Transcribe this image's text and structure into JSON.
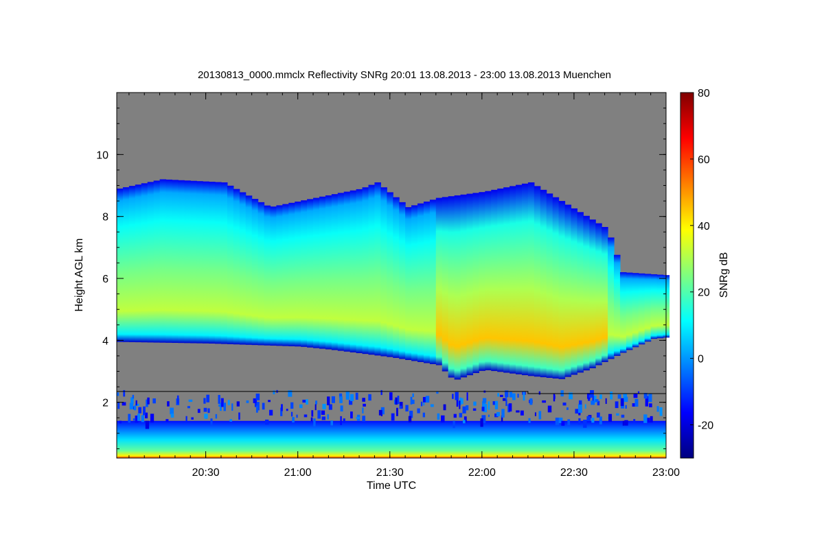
{
  "chart_data": {
    "type": "heatmap",
    "title": "20130813_0000.mmclx Reflectivity SNRg   20:01 13.08.2013 - 23:00 13.08.2013 Muenchen",
    "xlabel": "Time UTC",
    "ylabel": "Height AGL km",
    "colorbar_label": "SNRg dB",
    "xlim": [
      "20:01",
      "23:00"
    ],
    "ylim": [
      0.2,
      12.0
    ],
    "x_ticks": [
      "20:30",
      "21:00",
      "21:30",
      "22:00",
      "22:30",
      "23:00"
    ],
    "y_ticks": [
      "2",
      "4",
      "6",
      "8",
      "10"
    ],
    "colorbar_range": [
      -30,
      80
    ],
    "colorbar_ticks": [
      "-20",
      "0",
      "20",
      "40",
      "60",
      "80"
    ],
    "background_color": "#808080",
    "colormap": [
      "#00007f",
      "#0000ff",
      "#007fff",
      "#00ffff",
      "#7fff7f",
      "#ffff00",
      "#ff7f00",
      "#ff0000",
      "#7f0000"
    ],
    "cloud": {
      "base_km": [
        [
          "20:01",
          3.95
        ],
        [
          "20:30",
          3.9
        ],
        [
          "20:45",
          3.85
        ],
        [
          "21:00",
          3.8
        ],
        [
          "21:10",
          3.7
        ],
        [
          "21:30",
          3.45
        ],
        [
          "21:45",
          3.2
        ],
        [
          "21:50",
          2.7
        ],
        [
          "22:00",
          3.05
        ],
        [
          "22:15",
          2.85
        ],
        [
          "22:25",
          2.75
        ],
        [
          "22:35",
          3.1
        ],
        [
          "22:45",
          3.6
        ],
        [
          "22:55",
          4.05
        ],
        [
          "23:00",
          4.1
        ]
      ],
      "top_km": [
        [
          "20:01",
          8.9
        ],
        [
          "20:15",
          9.2
        ],
        [
          "20:35",
          9.1
        ],
        [
          "20:50",
          8.3
        ],
        [
          "21:05",
          8.6
        ],
        [
          "21:20",
          8.9
        ],
        [
          "21:25",
          9.1
        ],
        [
          "21:35",
          8.3
        ],
        [
          "21:45",
          8.6
        ],
        [
          "22:00",
          8.8
        ],
        [
          "22:15",
          9.1
        ],
        [
          "22:30",
          8.2
        ],
        [
          "22:40",
          7.6
        ],
        [
          "22:45",
          6.2
        ],
        [
          "23:00",
          6.1
        ]
      ],
      "peak_snr_db": 45
    },
    "near_surface_clutter_top_km": 1.4,
    "reference_line_km": [
      [
        "20:01",
        2.35
      ],
      [
        "22:15",
        2.35
      ],
      [
        "22:15",
        2.28
      ],
      [
        "23:00",
        2.28
      ]
    ]
  }
}
